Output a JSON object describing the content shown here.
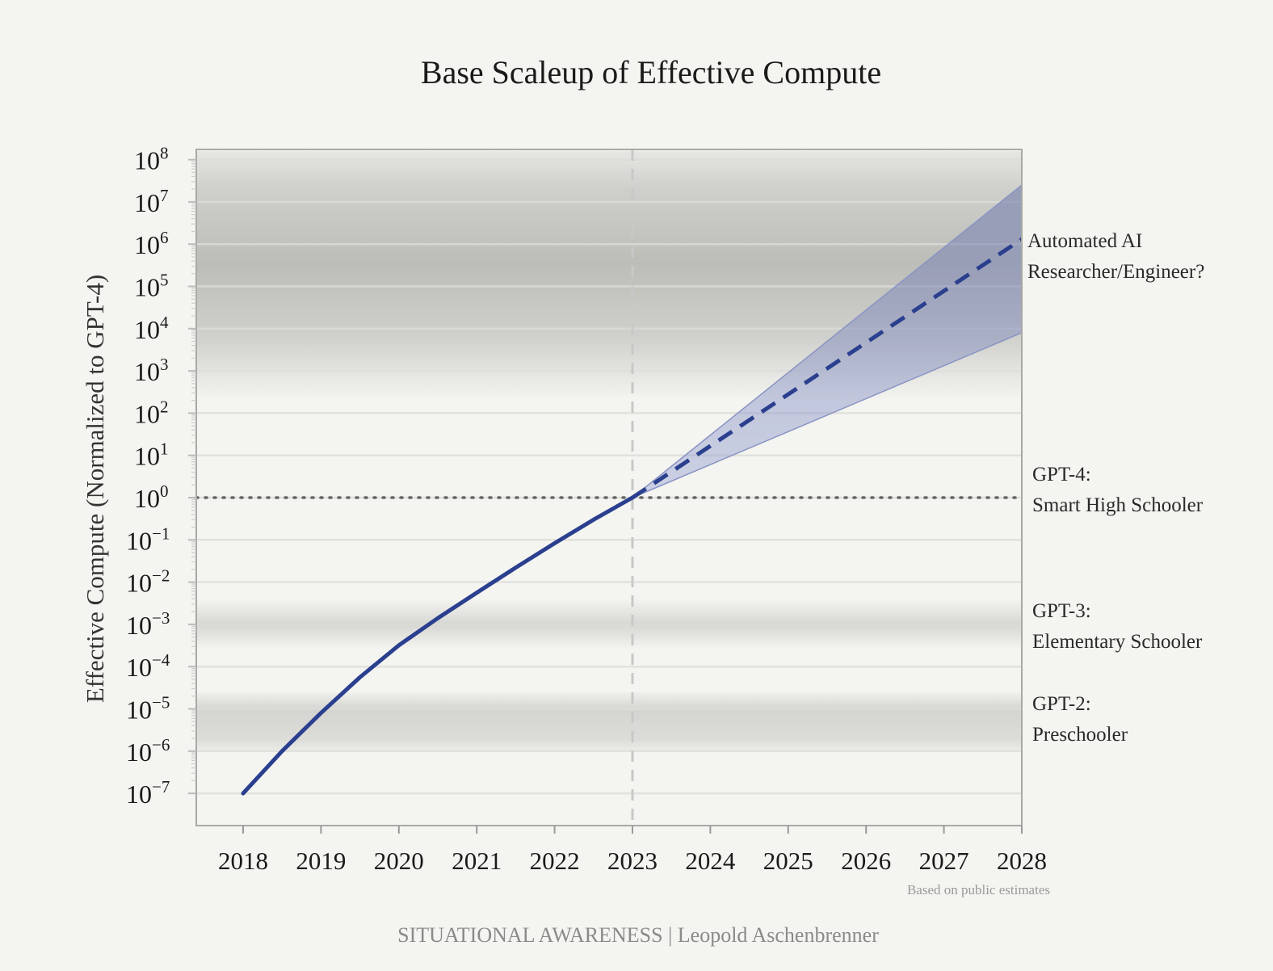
{
  "chart_data": {
    "type": "line",
    "title": "Base Scaleup of Effective Compute",
    "ylabel": "Effective Compute (Normalized to GPT-4)",
    "xlabel": "",
    "y_scale": "log",
    "xlim": [
      2018,
      2028
    ],
    "ylim_exponent": [
      -7,
      8
    ],
    "x_ticks": [
      "2018",
      "2019",
      "2020",
      "2021",
      "2022",
      "2023",
      "2024",
      "2025",
      "2026",
      "2027",
      "2028"
    ],
    "y_ticks": [
      {
        "base": "10",
        "exp": "8"
      },
      {
        "base": "10",
        "exp": "7"
      },
      {
        "base": "10",
        "exp": "6"
      },
      {
        "base": "10",
        "exp": "5"
      },
      {
        "base": "10",
        "exp": "4"
      },
      {
        "base": "10",
        "exp": "3"
      },
      {
        "base": "10",
        "exp": "2"
      },
      {
        "base": "10",
        "exp": "1"
      },
      {
        "base": "10",
        "exp": "0"
      },
      {
        "base": "10",
        "exp": "−1"
      },
      {
        "base": "10",
        "exp": "−2"
      },
      {
        "base": "10",
        "exp": "−3"
      },
      {
        "base": "10",
        "exp": "−4"
      },
      {
        "base": "10",
        "exp": "−5"
      },
      {
        "base": "10",
        "exp": "−6"
      },
      {
        "base": "10",
        "exp": "−7"
      }
    ],
    "grid": true,
    "series": [
      {
        "style": "solid",
        "color": "#2b3f8f",
        "x": [
          2018,
          2018.5,
          2019,
          2019.5,
          2020,
          2020.5,
          2021,
          2021.5,
          2022,
          2022.5,
          2023
        ],
        "y": [
          1e-07,
          1e-06,
          8e-06,
          5.6e-05,
          0.00032,
          0.0014,
          0.0056,
          0.022,
          0.083,
          0.3,
          1
        ]
      },
      {
        "style": "dashed",
        "color": "#2b3f8f",
        "x": [
          2023,
          2028
        ],
        "y": [
          1,
          1300000.0
        ],
        "band_lower": [
          1,
          8000.0
        ],
        "band_upper": [
          1,
          25000000.0
        ]
      }
    ],
    "reference_lines": [
      {
        "orientation": "horizontal",
        "y": 1,
        "style": "dotted",
        "color": "#666666"
      },
      {
        "orientation": "vertical",
        "x": 2023,
        "style": "dashed",
        "color": "#c8c8c8"
      }
    ],
    "shaded_bands_exponent": [
      {
        "from": 2.3,
        "to": 8.2
      },
      {
        "from": -3.6,
        "to": -2.4
      },
      {
        "from": -6.0,
        "to": -4.6
      }
    ],
    "annotations": [
      {
        "lines": [
          "Automated AI",
          "Researcher/Engineer?"
        ]
      },
      {
        "lines": [
          "GPT-4:",
          "Smart High Schooler"
        ]
      },
      {
        "lines": [
          "GPT-3:",
          "Elementary Schooler"
        ]
      },
      {
        "lines": [
          "GPT-2:",
          "Preschooler"
        ]
      }
    ],
    "note": "Based on public estimates",
    "band_color": "#8a94c4"
  },
  "footer": "SITUATIONAL AWARENESS | Leopold Aschenbrenner"
}
